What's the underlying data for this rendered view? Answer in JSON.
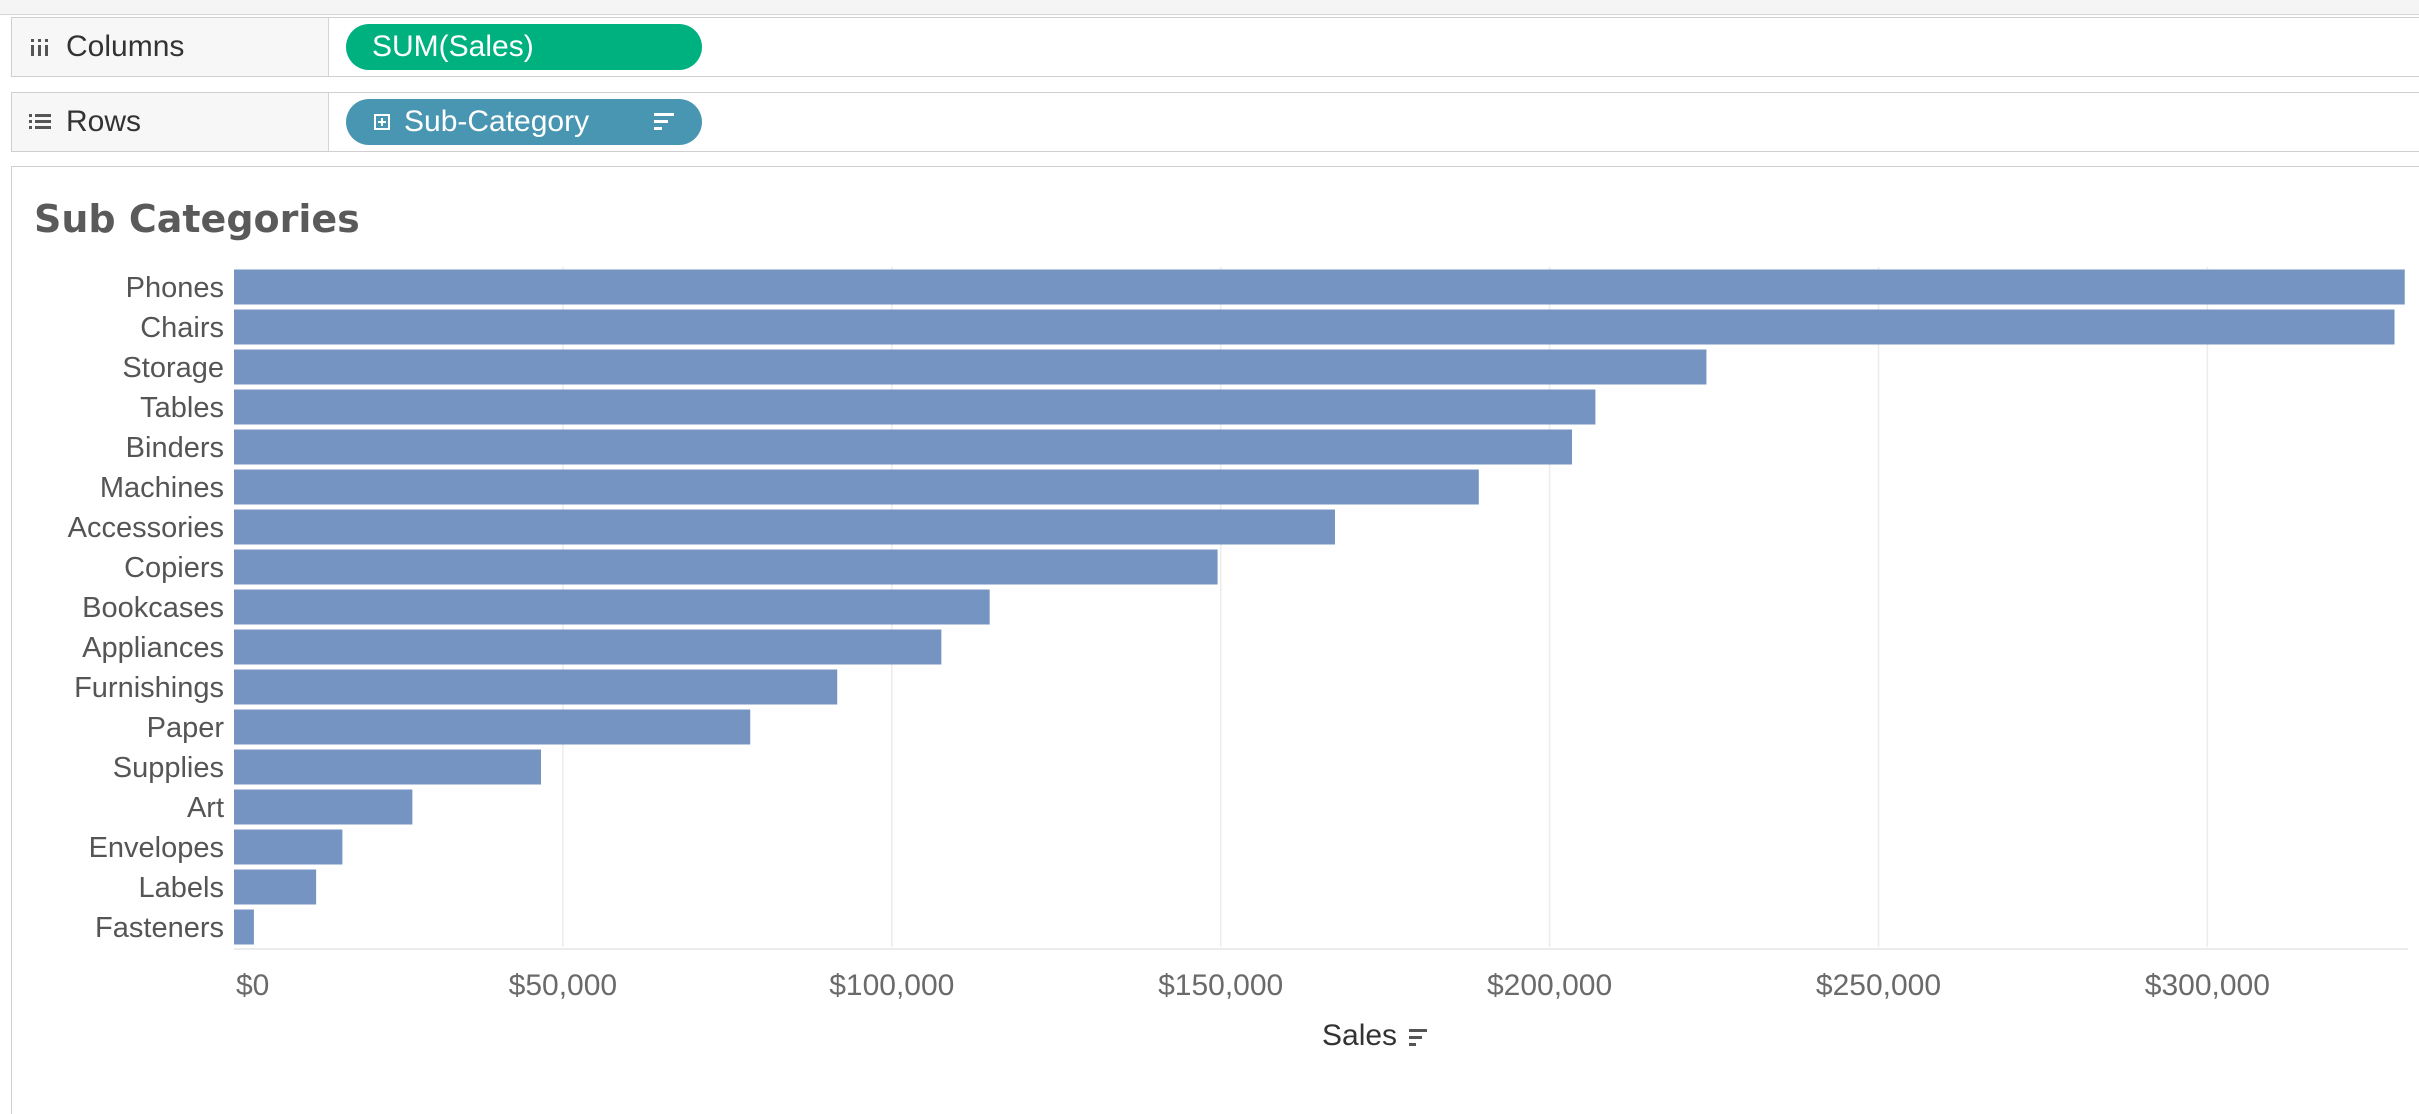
{
  "shelves": {
    "columns": {
      "label": "Columns",
      "icon": "columns-icon",
      "pill": "SUM(Sales)",
      "pill_color": "#00b180"
    },
    "rows": {
      "label": "Rows",
      "icon": "rows-list-icon",
      "pill": "Sub-Category",
      "pill_color": "#4996b2"
    }
  },
  "chart_data": {
    "type": "bar",
    "orientation": "horizontal",
    "title": "Sub Categories",
    "xlabel": "Sales",
    "ylabel": "",
    "categories": [
      "Phones",
      "Chairs",
      "Storage",
      "Tables",
      "Binders",
      "Machines",
      "Accessories",
      "Copiers",
      "Bookcases",
      "Appliances",
      "Furnishings",
      "Paper",
      "Supplies",
      "Art",
      "Envelopes",
      "Labels",
      "Fasteners"
    ],
    "values": [
      330007,
      328449,
      223844,
      206966,
      203413,
      189239,
      167380,
      149528,
      114880,
      107532,
      91705,
      78479,
      46674,
      27119,
      16476,
      12486,
      3024
    ],
    "xlim": [
      0,
      330500
    ],
    "xticks": [
      0,
      50000,
      100000,
      150000,
      200000,
      250000,
      300000
    ],
    "xtick_labels": [
      "$0",
      "$50,000",
      "$100,000",
      "$150,000",
      "$200,000",
      "$250,000",
      "$300,000"
    ],
    "bar_color": "#7594c1",
    "grid": "vertical",
    "sorted": "descending"
  }
}
